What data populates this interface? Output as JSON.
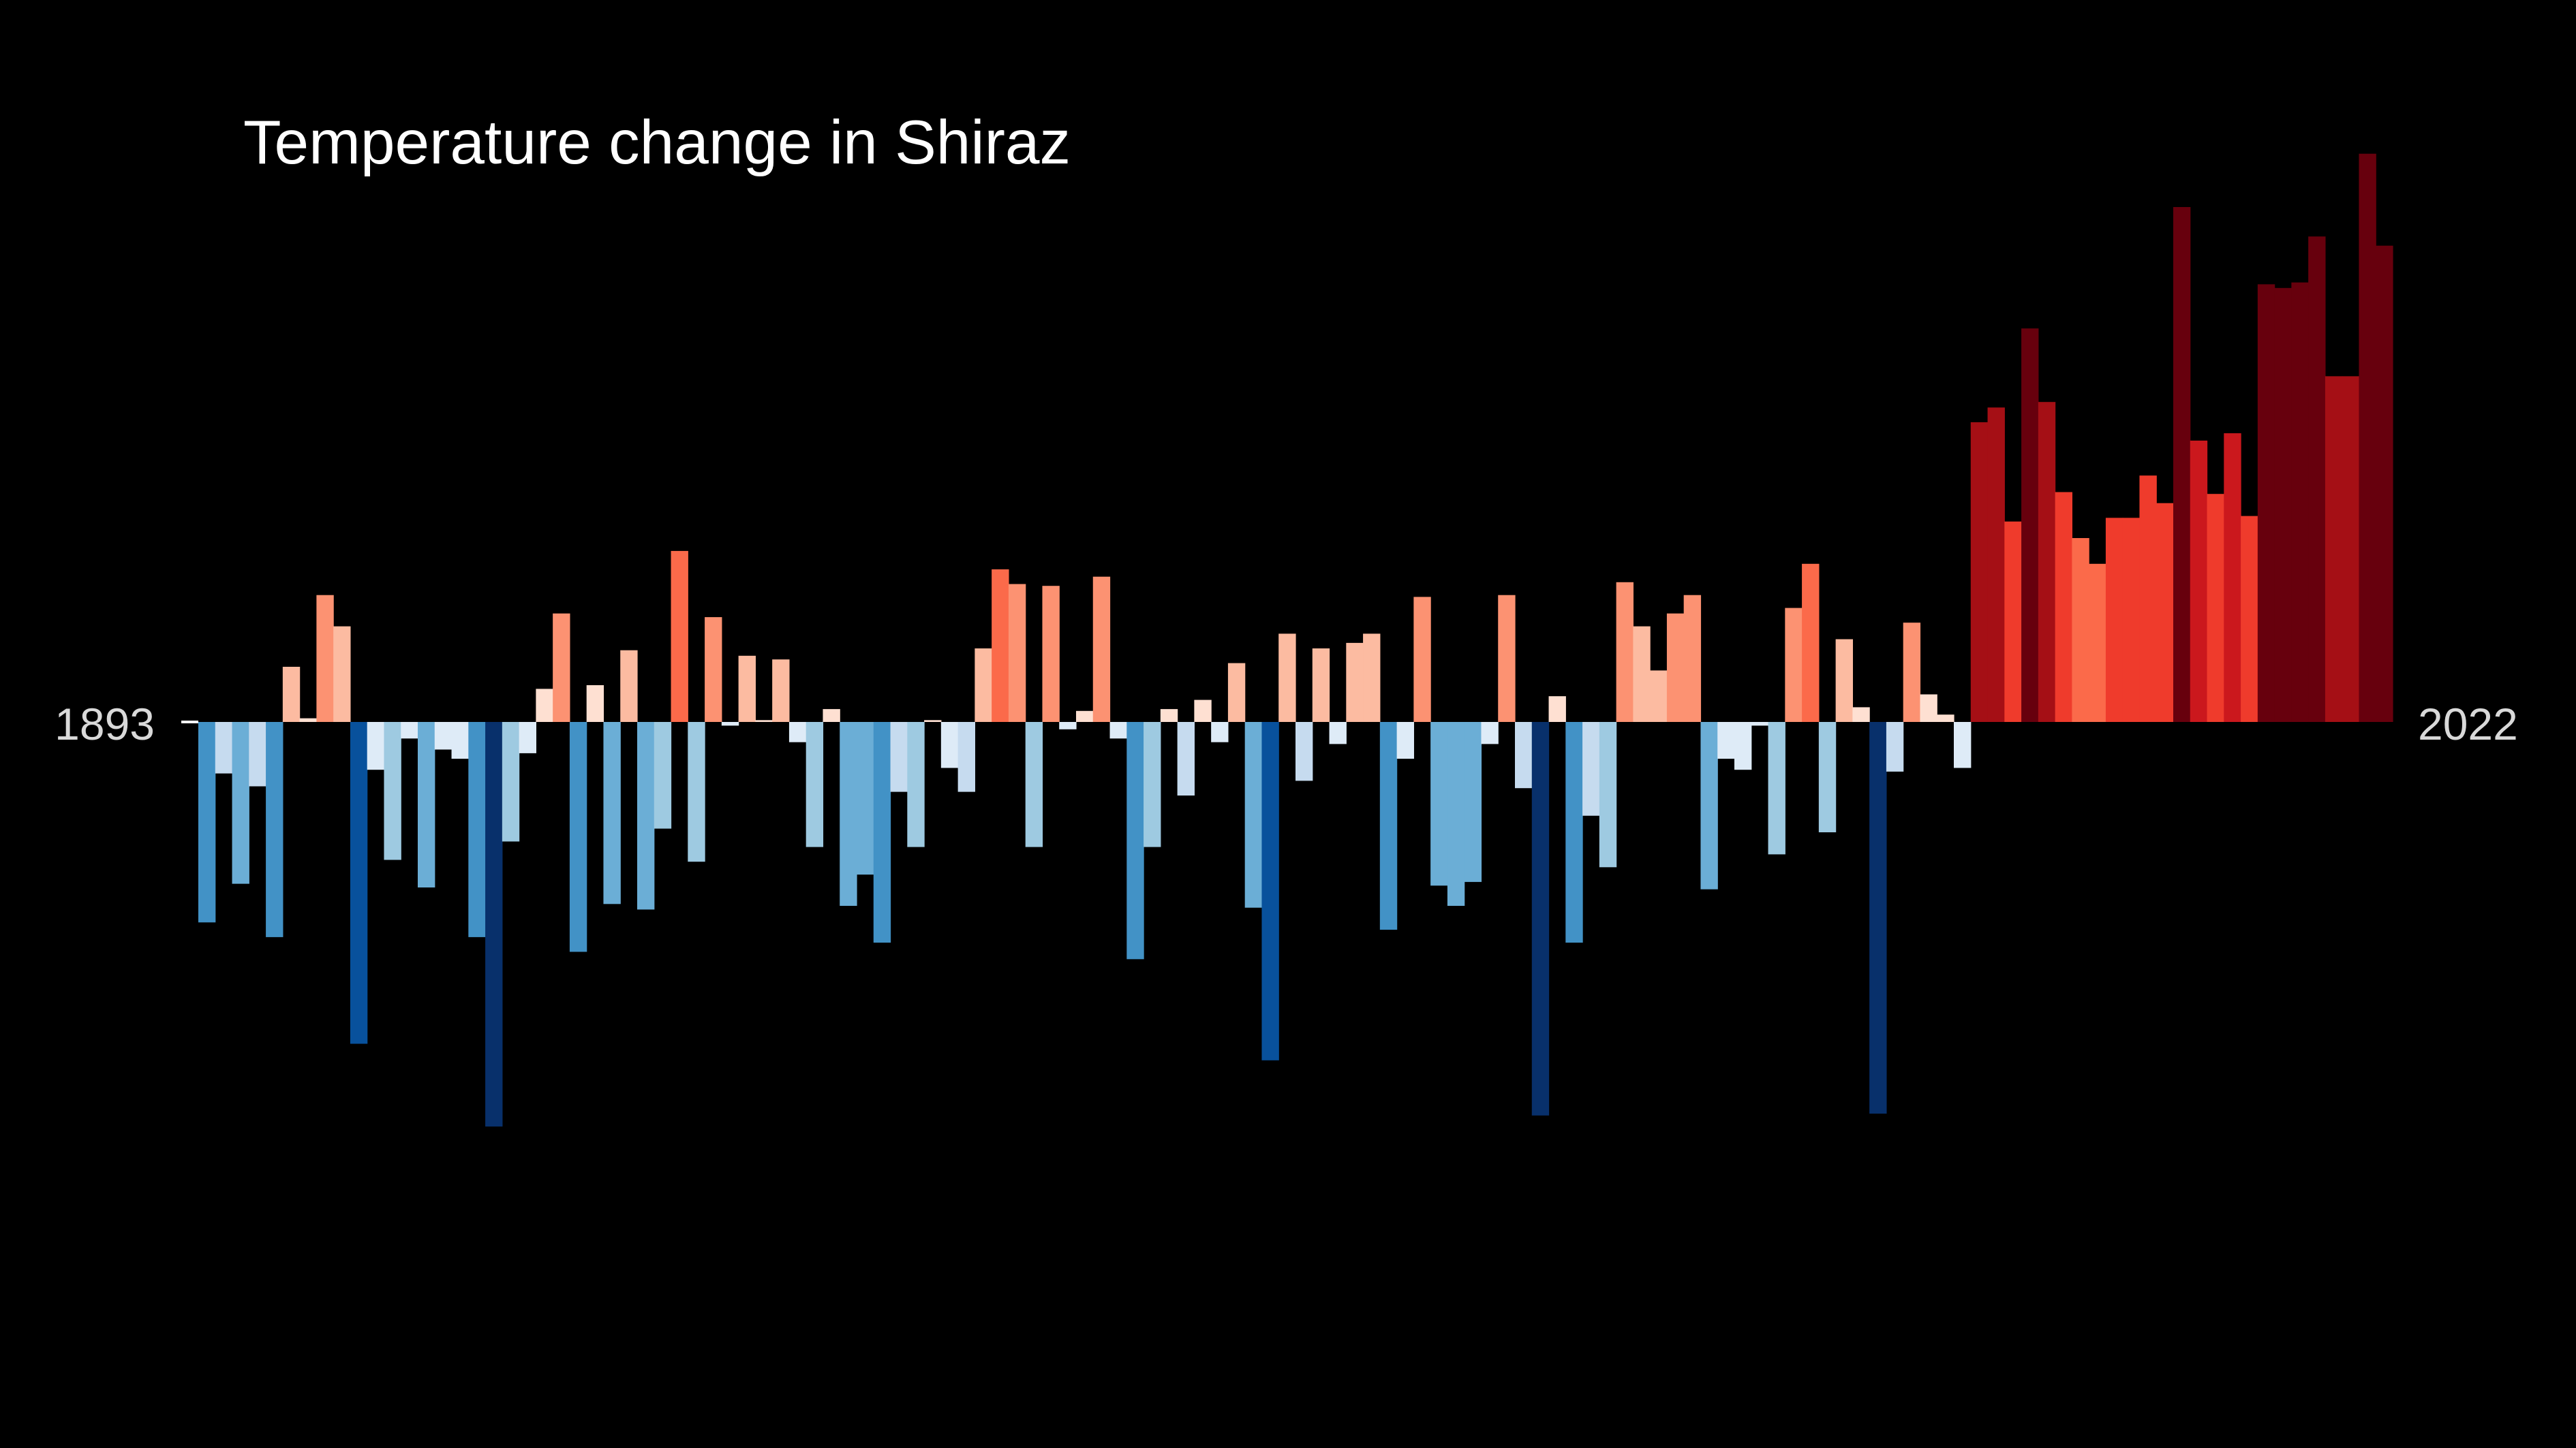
{
  "chart_data": {
    "type": "bar",
    "title": "Temperature change in Shiraz",
    "x_start": 1893,
    "x_end": 2022,
    "tick_labels": [
      "1893",
      "2022"
    ],
    "ylim": [
      -1.1,
      1.5
    ],
    "grid": false,
    "legend": "none",
    "values": [
      -0.545,
      -0.14,
      -0.44,
      -0.175,
      -0.585,
      0.15,
      0.01,
      0.345,
      0.26,
      -0.875,
      -0.13,
      -0.375,
      -0.045,
      -0.45,
      -0.075,
      -0.1,
      -0.585,
      -1.1,
      -0.325,
      -0.085,
      0.09,
      0.295,
      -0.625,
      0.1,
      -0.495,
      0.195,
      -0.51,
      -0.29,
      0.465,
      -0.38,
      0.285,
      -0.01,
      0.18,
      0.005,
      0.17,
      -0.055,
      -0.34,
      0.035,
      -0.5,
      -0.415,
      -0.6,
      -0.19,
      -0.34,
      0.005,
      -0.125,
      -0.19,
      0.2,
      0.415,
      0.375,
      -0.34,
      0.37,
      -0.02,
      0.03,
      0.395,
      -0.045,
      -0.645,
      -0.34,
      0.035,
      -0.2,
      0.06,
      -0.055,
      0.16,
      -0.505,
      -0.92,
      0.24,
      -0.16,
      0.2,
      -0.06,
      0.215,
      0.24,
      -0.565,
      -0.1,
      0.34,
      -0.445,
      -0.5,
      -0.435,
      -0.06,
      0.345,
      -0.18,
      -1.07,
      0.07,
      -0.6,
      -0.255,
      -0.395,
      0.38,
      0.26,
      0.14,
      0.295,
      0.345,
      -0.455,
      -0.1,
      -0.13,
      -0.01,
      -0.36,
      0.31,
      0.43,
      -0.3,
      0.225,
      0.04,
      -1.065,
      -0.135,
      0.27,
      0.075,
      0.02,
      -0.125,
      0.815,
      0.855,
      0.545,
      1.07,
      0.87,
      0.625,
      0.5,
      0.43,
      0.555,
      0.555,
      0.67,
      0.595,
      1.4,
      0.765,
      0.62,
      0.785,
      0.56,
      1.19,
      1.18,
      1.195,
      1.32,
      0.94,
      0.94,
      1.545,
      1.295
    ]
  }
}
